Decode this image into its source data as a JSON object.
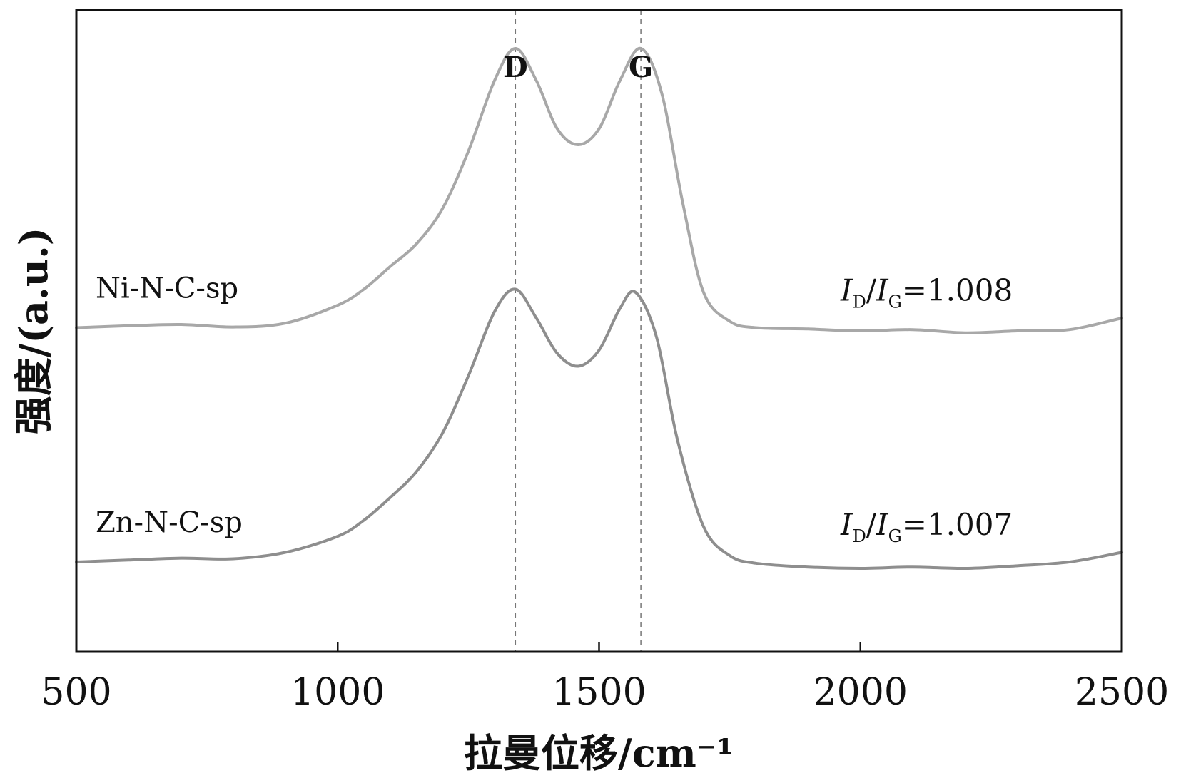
{
  "chart_data": {
    "type": "line",
    "xlabel": "拉曼位移/cm⁻¹",
    "ylabel": "强度/(a.u.)",
    "xlim": [
      500,
      2500
    ],
    "ylim": [
      0,
      10
    ],
    "xticks": [
      500,
      1000,
      1500,
      2000,
      2500
    ],
    "xtick_labels": [
      "500",
      "1000",
      "1500",
      "2000",
      "2500"
    ],
    "grid": false,
    "reference_lines": [
      {
        "label": "D",
        "x": 1340
      },
      {
        "label": "G",
        "x": 1580
      }
    ],
    "series": [
      {
        "name": "Ni-N-C-sp",
        "ratio_label": {
          "prefix_i": "I",
          "sub1": "D",
          "slash": "/",
          "sub2": "G",
          "value": "=1.008"
        },
        "color": "#a8a8a8",
        "x": [
          500,
          600,
          700,
          800,
          900,
          1000,
          1050,
          1100,
          1150,
          1200,
          1250,
          1300,
          1340,
          1380,
          1420,
          1460,
          1500,
          1540,
          1580,
          1620,
          1660,
          1700,
          1750,
          1800,
          1900,
          2000,
          2100,
          2200,
          2300,
          2400,
          2500
        ],
        "values": [
          5.05,
          5.08,
          5.1,
          5.06,
          5.12,
          5.4,
          5.65,
          6.0,
          6.35,
          6.9,
          7.8,
          8.9,
          9.4,
          8.9,
          8.15,
          7.9,
          8.15,
          8.9,
          9.4,
          8.7,
          7.0,
          5.6,
          5.15,
          5.05,
          5.03,
          5.0,
          5.02,
          4.97,
          5.0,
          5.02,
          5.2
        ]
      },
      {
        "name": "Zn-N-C-sp",
        "ratio_label": {
          "prefix_i": "I",
          "sub1": "D",
          "slash": "/",
          "sub2": "G",
          "value": "=1.007"
        },
        "color": "#8e8e8e",
        "x": [
          500,
          600,
          700,
          800,
          900,
          1000,
          1050,
          1100,
          1150,
          1200,
          1250,
          1300,
          1340,
          1380,
          1420,
          1460,
          1500,
          1540,
          1570,
          1610,
          1650,
          1700,
          1750,
          1800,
          1900,
          2000,
          2100,
          2200,
          2300,
          2400,
          2500
        ],
        "values": [
          1.4,
          1.43,
          1.46,
          1.45,
          1.55,
          1.8,
          2.05,
          2.4,
          2.8,
          3.4,
          4.3,
          5.3,
          5.65,
          5.2,
          4.65,
          4.45,
          4.7,
          5.35,
          5.6,
          4.9,
          3.3,
          1.95,
          1.5,
          1.38,
          1.32,
          1.3,
          1.32,
          1.3,
          1.34,
          1.4,
          1.55
        ]
      }
    ]
  }
}
